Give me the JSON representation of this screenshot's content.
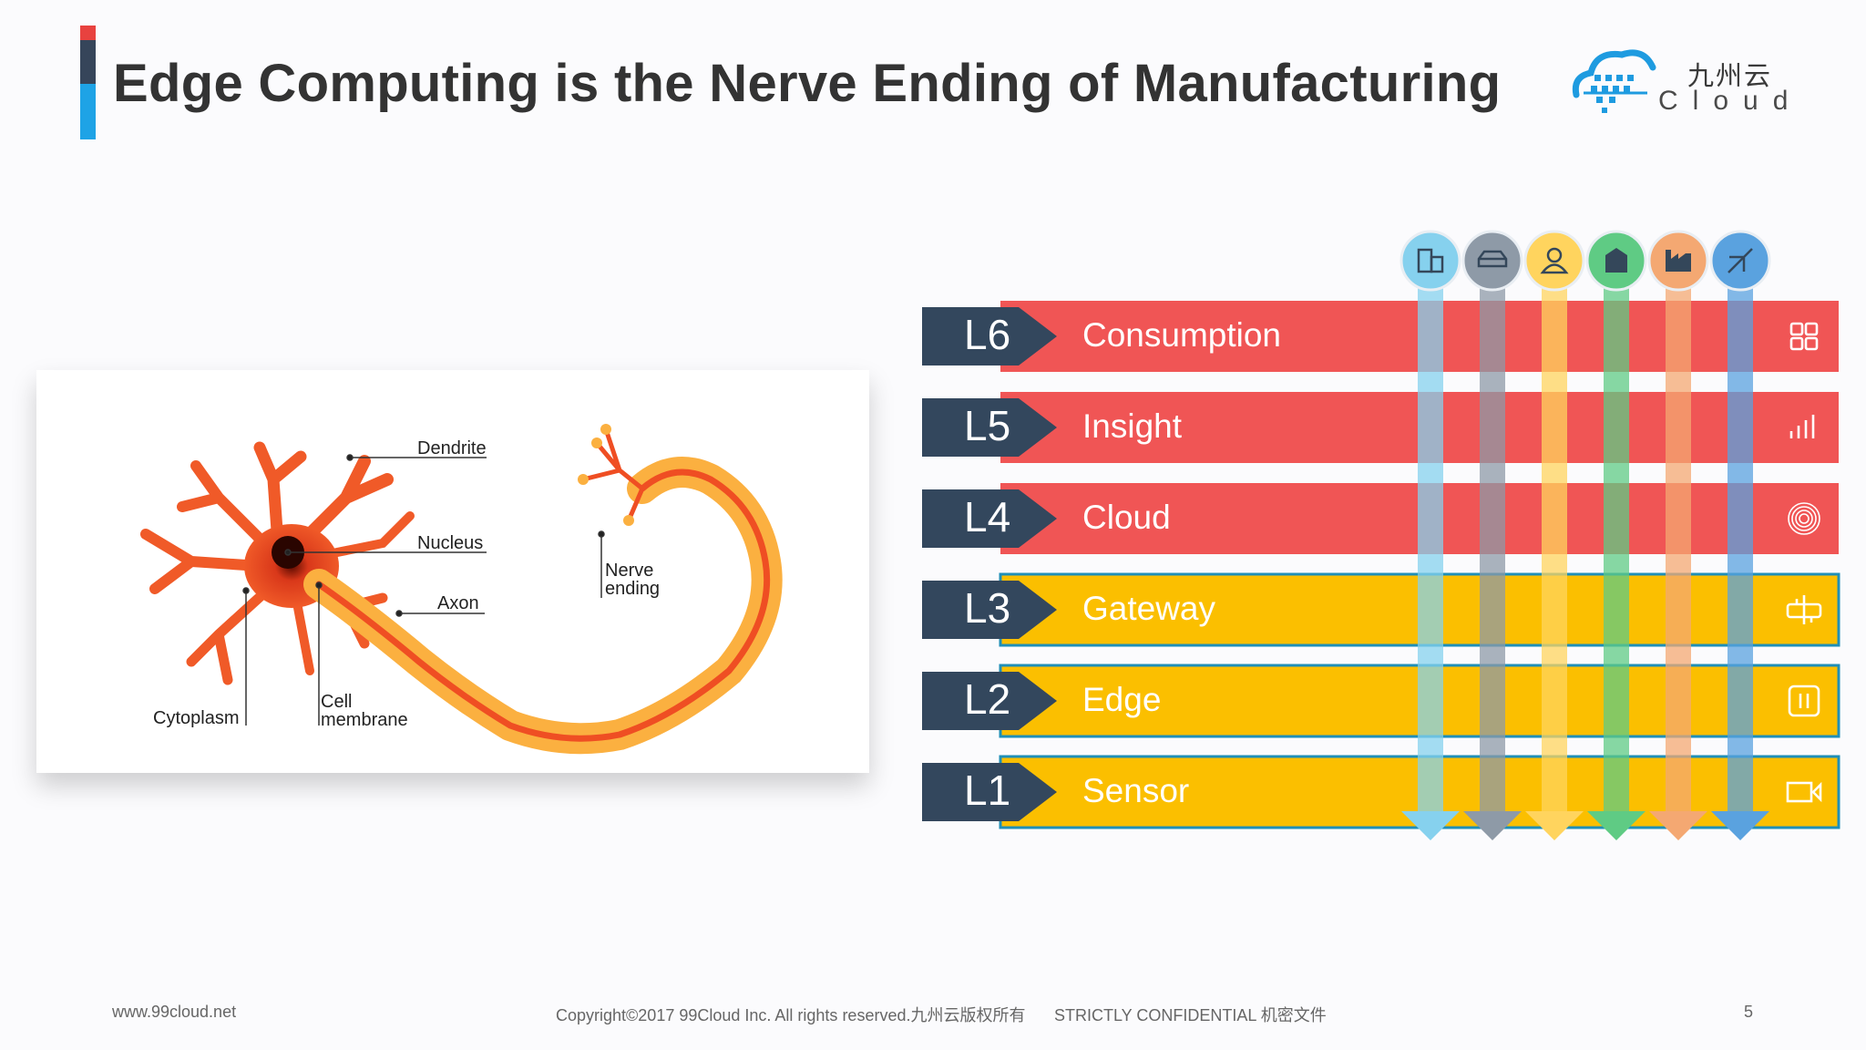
{
  "header": {
    "title": "Edge Computing is the Nerve Ending of Manufacturing",
    "logo": {
      "chinese": "九州云",
      "english": "Cloud"
    },
    "accent_colors": [
      "#e8423f",
      "#36455a",
      "#1ea3e6"
    ]
  },
  "neuron": {
    "labels": {
      "dendrite": "Dendrite",
      "nucleus": "Nucleus",
      "axon": "Axon",
      "cytoplasm": "Cytoplasm",
      "cell_membrane_1": "Cell",
      "cell_membrane_2": "membrane",
      "nerve_ending_1": "Nerve",
      "nerve_ending_2": "ending"
    }
  },
  "layers": [
    {
      "level": "L6",
      "name": "Consumption",
      "icon": "grid-icon"
    },
    {
      "level": "L5",
      "name": "Insight",
      "icon": "signal-bars-icon"
    },
    {
      "level": "L4",
      "name": "Cloud",
      "icon": "fingerprint-icon"
    },
    {
      "level": "L3",
      "name": "Gateway",
      "icon": "gateway-icon"
    },
    {
      "level": "L2",
      "name": "Edge",
      "icon": "edge-device-icon"
    },
    {
      "level": "L1",
      "name": "Sensor",
      "icon": "vr-sensor-icon"
    }
  ],
  "columns": [
    {
      "icon": "building-icon",
      "color": "#86d1ee"
    },
    {
      "icon": "car-icon",
      "color": "#8e9aa7"
    },
    {
      "icon": "person-icon",
      "color": "#ffd45e"
    },
    {
      "icon": "bank-icon",
      "color": "#5fcb84"
    },
    {
      "icon": "factory-icon",
      "color": "#f4a872"
    },
    {
      "icon": "airplane-icon",
      "color": "#5aa2df"
    }
  ],
  "colors": {
    "red_band": "#f05555",
    "yellow_band": "#fbbf00",
    "level_box": "#33475d"
  },
  "footer": {
    "website": "www.99cloud.net",
    "copyright": "Copyright©2017 99Cloud Inc. All rights reserved.九州云版权所有",
    "confidential": "STRICTLY CONFIDENTIAL 机密文件",
    "page_number": "5"
  }
}
